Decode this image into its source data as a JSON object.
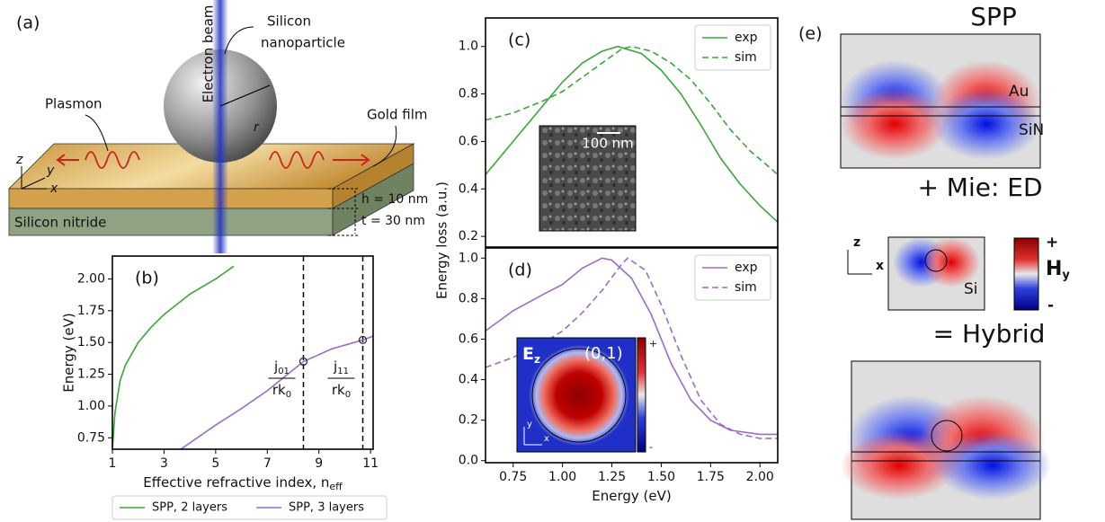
{
  "chart_data": [
    {
      "type": "line",
      "panel_label": "(b)",
      "x_label": "Effective refractive index, n",
      "x_label_sub": "eff",
      "y_label": "Energy (eV)",
      "xlim": [
        1,
        11.1
      ],
      "ylim": [
        0.66,
        2.18
      ],
      "xticks": [
        1,
        3,
        5,
        7,
        9,
        11
      ],
      "yticks": [
        0.75,
        {
          "value": 1,
          "label": "1.00"
        },
        1.25,
        {
          "value": 1.5,
          "label": "1.50"
        },
        1.75,
        {
          "value": 2,
          "label": "2.00"
        }
      ],
      "legend": "below",
      "series": [
        {
          "name": "SPP, 2 layers",
          "color": "#3aa63a",
          "dash": false,
          "x": [
            1.0,
            1.1,
            1.3,
            1.5,
            2.0,
            2.5,
            3.0,
            4.0,
            5.0,
            5.7
          ],
          "values": [
            0.66,
            0.95,
            1.2,
            1.32,
            1.5,
            1.62,
            1.72,
            1.88,
            2.0,
            2.1
          ]
        },
        {
          "name": "SPP, 3 layers",
          "color": "#9a6cc8",
          "dash": false,
          "x": [
            3.65,
            5.0,
            6.0,
            7.0,
            8.4,
            9.5,
            10.7,
            11.1
          ],
          "values": [
            0.66,
            0.85,
            0.98,
            1.12,
            1.35,
            1.45,
            1.52,
            1.55
          ]
        }
      ],
      "vlines": [
        8.4,
        10.7
      ],
      "markers": {
        "x": [
          8.4,
          10.7
        ],
        "values": [
          1.35,
          1.52
        ]
      },
      "annotations": [
        {
          "num": "j",
          "num_sub": "01",
          "den": "rk",
          "den_sub": "0"
        },
        {
          "num": "j",
          "num_sub": "11",
          "den": "rk",
          "den_sub": "0"
        }
      ]
    },
    {
      "type": "line",
      "panel_label": "(c)",
      "y_label": "Energy loss (a.u.)",
      "xlim": [
        0.61,
        2.09
      ],
      "ylim": [
        0.155,
        1.12
      ],
      "yticks": [
        0.2,
        0.4,
        0.6,
        0.8,
        {
          "value": 1,
          "label": "1.0"
        }
      ],
      "legend": "upper right",
      "inset": {
        "scale_label": "100 nm"
      },
      "series": [
        {
          "name": "exp",
          "color": "#3aa63a",
          "dash": false,
          "x": [
            0.61,
            0.75,
            0.9,
            1.0,
            1.1,
            1.2,
            1.28,
            1.4,
            1.5,
            1.6,
            1.7,
            1.8,
            1.9,
            2.0,
            2.09
          ],
          "values": [
            0.46,
            0.6,
            0.75,
            0.85,
            0.93,
            0.98,
            1.0,
            0.97,
            0.9,
            0.8,
            0.67,
            0.53,
            0.42,
            0.33,
            0.26
          ]
        },
        {
          "name": "sim",
          "color": "#3aa63a",
          "dash": true,
          "x": [
            0.61,
            0.75,
            0.9,
            1.0,
            1.1,
            1.2,
            1.3,
            1.35,
            1.45,
            1.55,
            1.65,
            1.75,
            1.85,
            1.95,
            2.05,
            2.09
          ],
          "values": [
            0.69,
            0.72,
            0.77,
            0.81,
            0.87,
            0.93,
            0.99,
            1.0,
            0.98,
            0.93,
            0.86,
            0.76,
            0.65,
            0.56,
            0.49,
            0.46
          ]
        }
      ]
    },
    {
      "type": "line",
      "panel_label": "(d)",
      "x_label": "Energy (eV)",
      "xlim": [
        0.61,
        2.09
      ],
      "ylim": [
        -0.01,
        1.05
      ],
      "xticks": [
        0.75,
        {
          "value": 1,
          "label": "1.00"
        },
        1.25,
        {
          "value": 1.5,
          "label": "1.50"
        },
        1.75,
        {
          "value": 2,
          "label": "2.00"
        }
      ],
      "yticks": [
        {
          "value": 0,
          "label": "0.0"
        },
        0.2,
        0.4,
        0.6,
        0.8,
        {
          "value": 1,
          "label": "1.0"
        }
      ],
      "legend": "upper right",
      "inset": {
        "field": "E",
        "field_sub": "z",
        "mode": "(0,1)",
        "plus": "+",
        "minus": "-",
        "axis_y": "y",
        "axis_x": "x"
      },
      "series": [
        {
          "name": "exp",
          "color": "#9a6cc8",
          "dash": false,
          "x": [
            0.61,
            0.75,
            0.9,
            1.0,
            1.1,
            1.2,
            1.25,
            1.35,
            1.45,
            1.55,
            1.65,
            1.75,
            1.85,
            2.0,
            2.09
          ],
          "values": [
            0.64,
            0.74,
            0.82,
            0.87,
            0.95,
            1.0,
            0.99,
            0.9,
            0.72,
            0.48,
            0.3,
            0.2,
            0.15,
            0.13,
            0.13
          ]
        },
        {
          "name": "sim",
          "color": "#9a6cc8",
          "dash": true,
          "x": [
            0.61,
            0.75,
            0.9,
            1.0,
            1.1,
            1.2,
            1.3,
            1.33,
            1.42,
            1.5,
            1.6,
            1.7,
            1.8,
            1.9,
            2.0,
            2.09
          ],
          "values": [
            0.46,
            0.51,
            0.58,
            0.64,
            0.73,
            0.84,
            0.97,
            1.0,
            0.94,
            0.77,
            0.52,
            0.3,
            0.18,
            0.13,
            0.11,
            0.11
          ]
        }
      ]
    }
  ],
  "panel_a": {
    "label": "(a)",
    "beam": "Electron beam",
    "particle_1": "Silicon",
    "particle_2": "nanoparticle",
    "radius": "r",
    "plasmon": "Plasmon",
    "gold": "Gold film",
    "nitride": "Silicon nitride",
    "axis_z": "z",
    "axis_y": "y",
    "axis_x": "x",
    "h": "h = 10 nm",
    "t": "t = 30 nm"
  },
  "panel_e": {
    "label": "(e)",
    "spp": "SPP",
    "au": "Au",
    "sin": "SiN",
    "plus_mie": "+  Mie: ED",
    "axis_z": "z",
    "axis_x": "x",
    "field": "H",
    "field_sub": "y",
    "cb_plus": "+",
    "cb_minus": "-",
    "si": "Si",
    "equals_hybrid": "=  Hybrid"
  }
}
